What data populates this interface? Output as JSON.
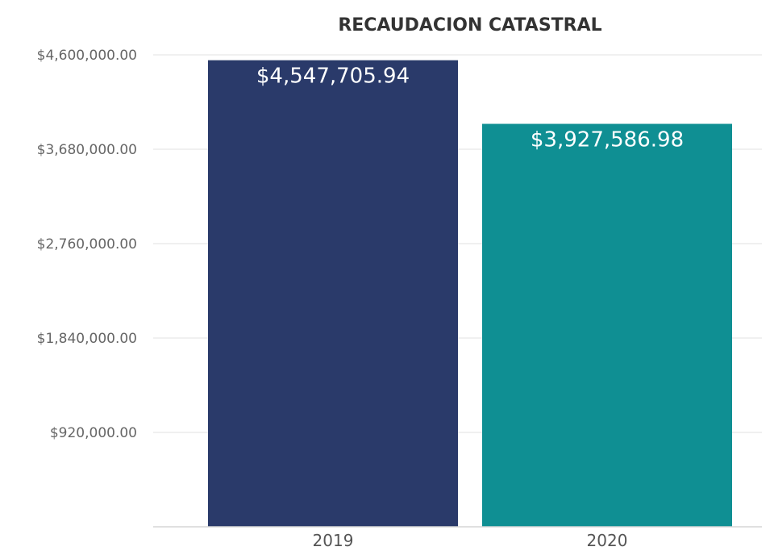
{
  "chart_data": {
    "type": "bar",
    "title": "RECAUDACION CATASTRAL",
    "xlabel": "",
    "ylabel": "",
    "categories": [
      "2019",
      "2020"
    ],
    "values": [
      4547705.94,
      3927586.98
    ],
    "value_labels": [
      "$4,547,705.94",
      "$3,927,586.98"
    ],
    "bar_colors": [
      "#2a3a6a",
      "#0f8f93"
    ],
    "ylim": [
      0,
      4600000
    ],
    "yticks": [
      920000,
      1840000,
      2760000,
      3680000,
      4600000
    ],
    "ytick_labels": [
      "$920,000.00",
      "$1,840,000.00",
      "$2,760,000.00",
      "$3,680,000.00",
      "$4,600,000.00"
    ],
    "grid": true,
    "legend": false
  }
}
